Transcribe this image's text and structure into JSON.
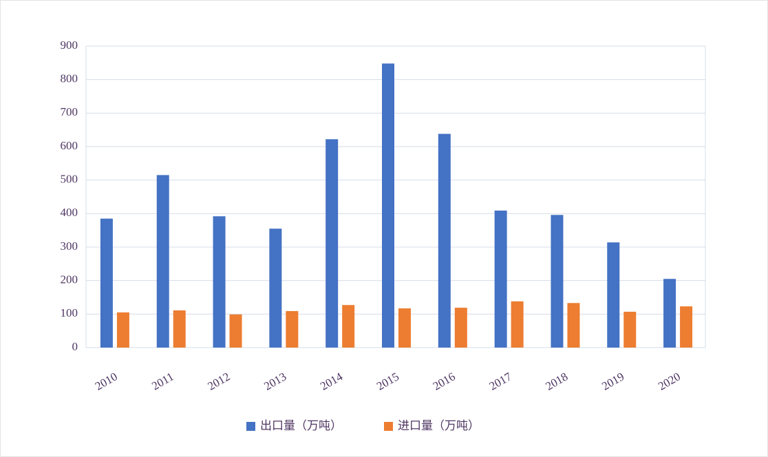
{
  "chart_data": {
    "type": "bar",
    "categories": [
      "2010",
      "2011",
      "2012",
      "2013",
      "2014",
      "2015",
      "2016",
      "2017",
      "2018",
      "2019",
      "2020"
    ],
    "series": [
      {
        "name": "出口量（万吨）",
        "color": "#4472c4",
        "values": [
          385,
          515,
          392,
          355,
          622,
          848,
          638,
          409,
          396,
          314,
          205
        ]
      },
      {
        "name": "进口量（万吨）",
        "color": "#ed7d31",
        "values": [
          105,
          111,
          99,
          109,
          127,
          117,
          119,
          138,
          133,
          107,
          123
        ]
      }
    ],
    "ylim": [
      0,
      900
    ],
    "yticks": [
      0,
      100,
      200,
      300,
      400,
      500,
      600,
      700,
      800,
      900
    ],
    "grid": true
  }
}
